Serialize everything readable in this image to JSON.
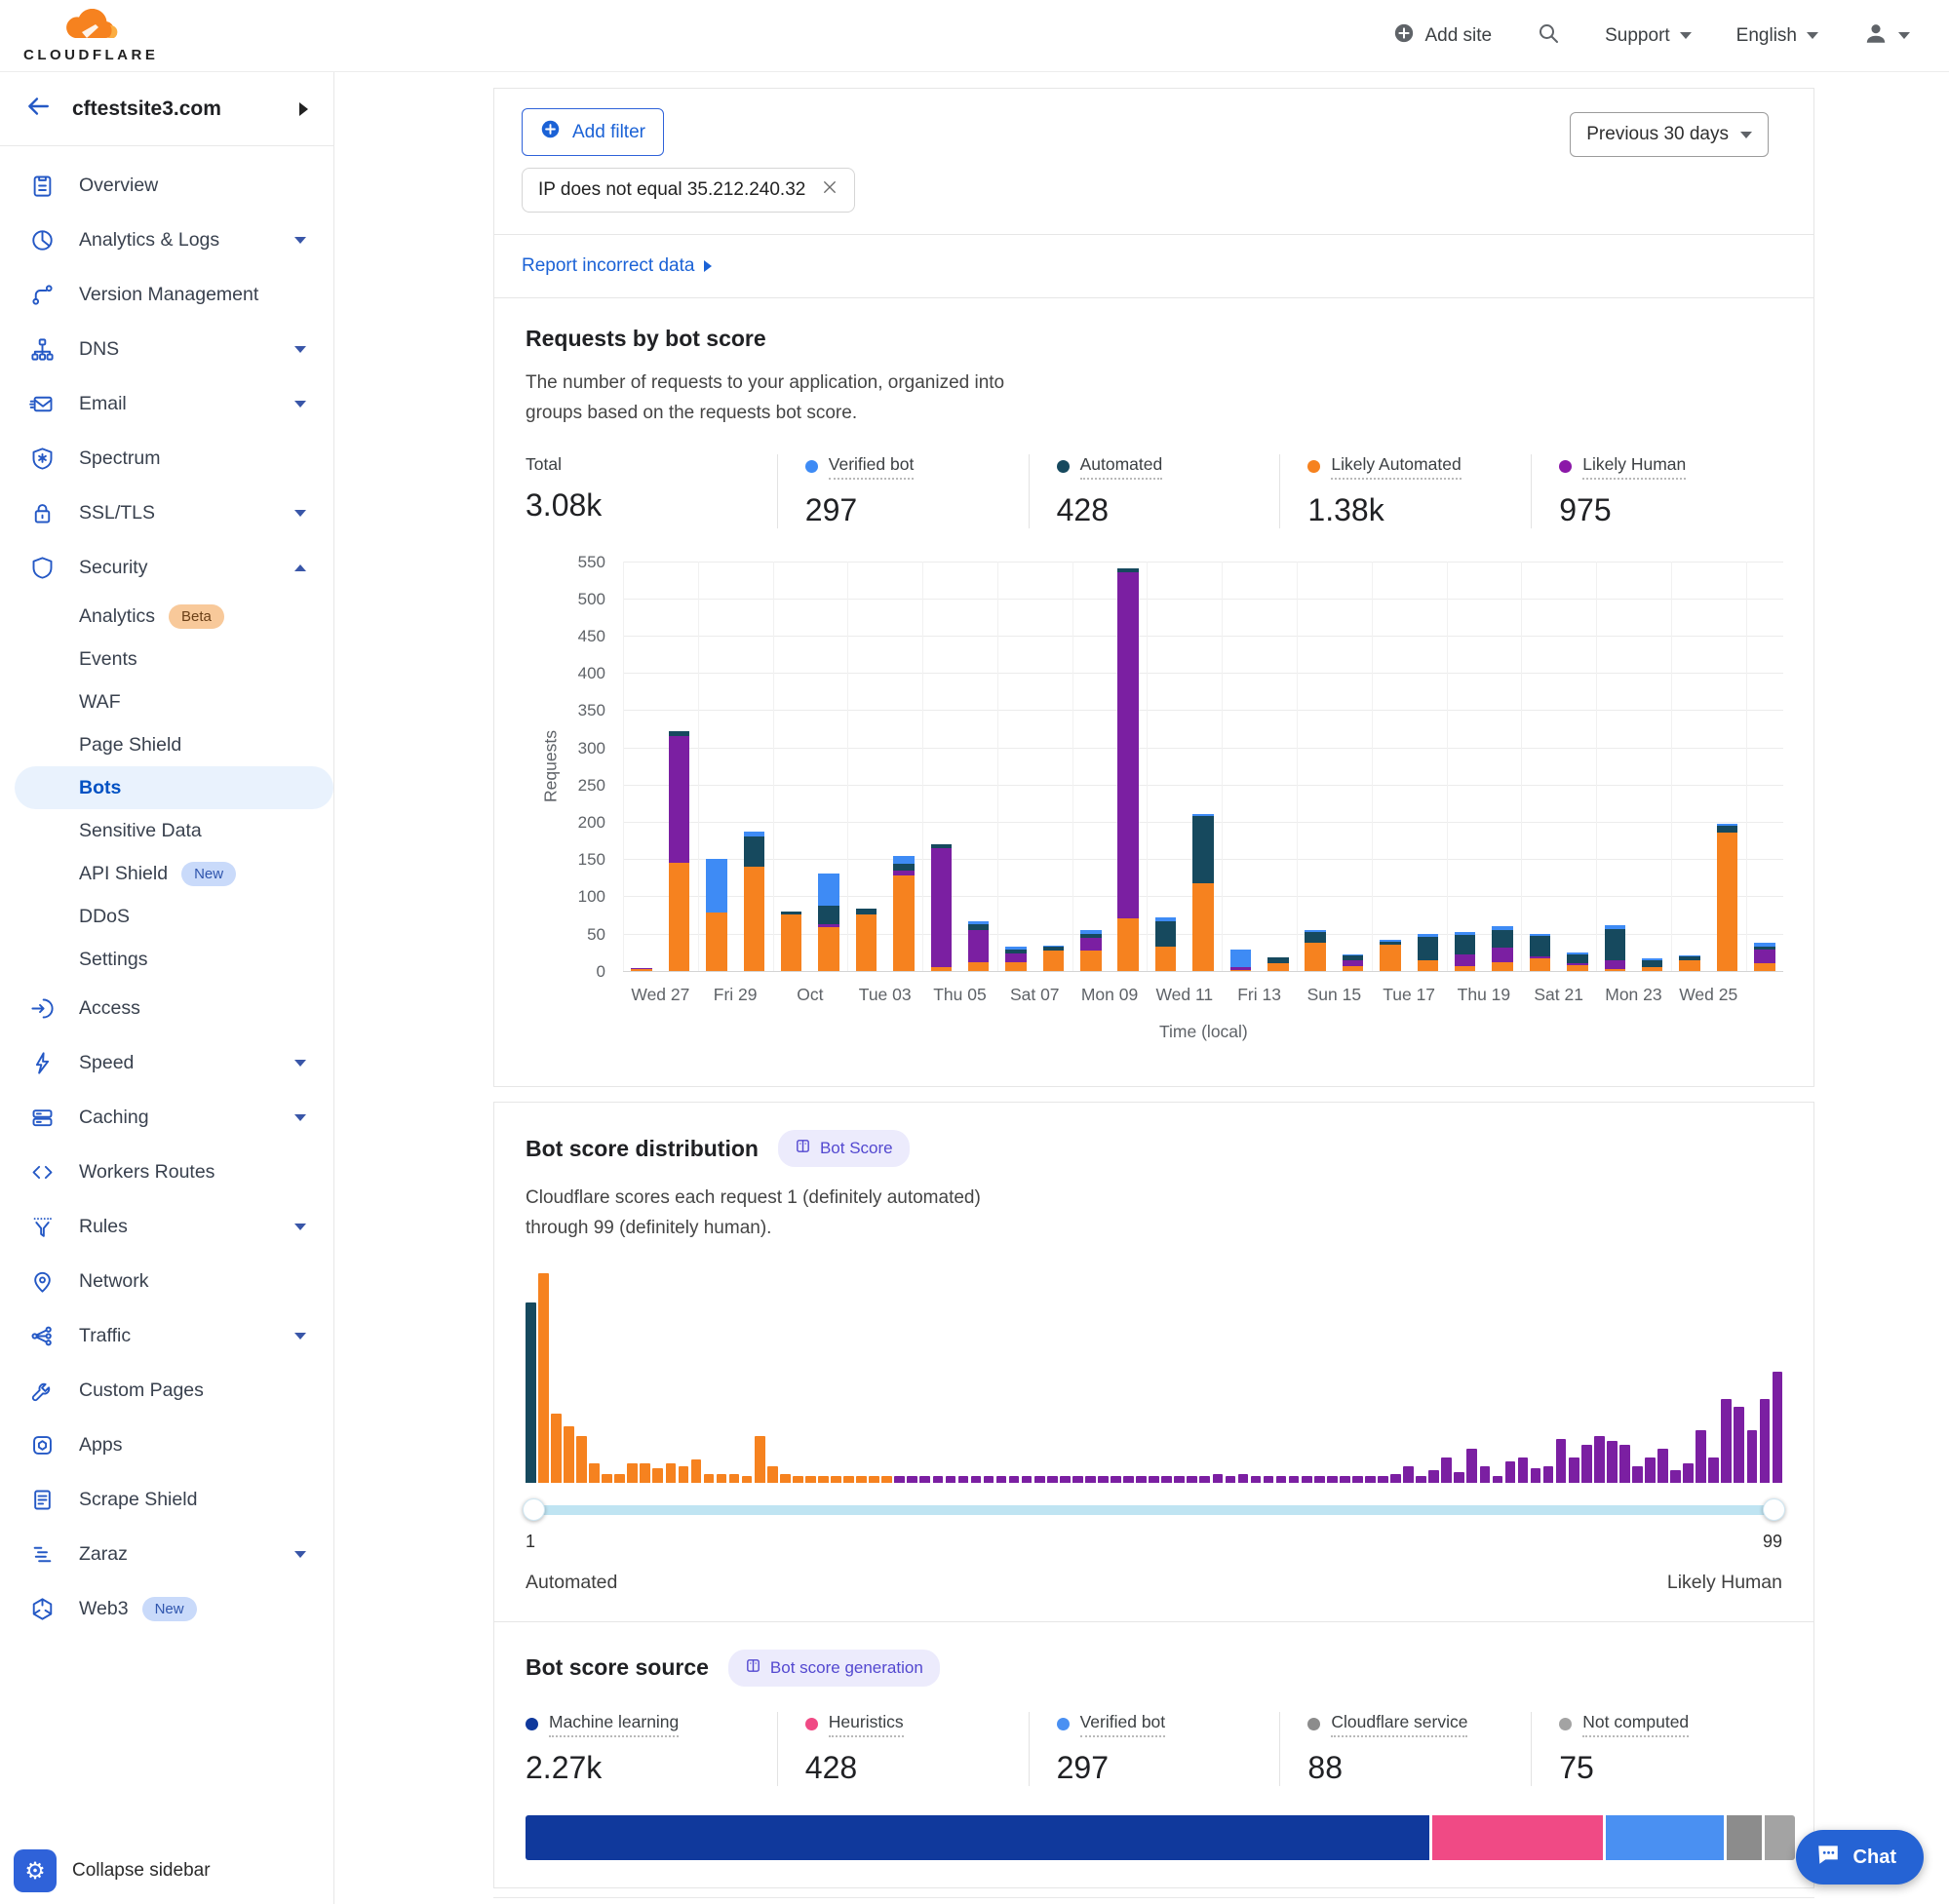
{
  "header": {
    "brand": "CLOUDFLARE",
    "add_site": "Add site",
    "support": "Support",
    "language": "English"
  },
  "sidebar": {
    "site": "cftestsite3.com",
    "collapse_label": "Collapse sidebar",
    "items": [
      {
        "name": "overview",
        "label": "Overview",
        "icon": "clipboard"
      },
      {
        "name": "analytics-logs",
        "label": "Analytics & Logs",
        "icon": "pie",
        "chevron": "down"
      },
      {
        "name": "version-management",
        "label": "Version Management",
        "icon": "branch"
      },
      {
        "name": "dns",
        "label": "DNS",
        "icon": "dns",
        "chevron": "down"
      },
      {
        "name": "email",
        "label": "Email",
        "icon": "email",
        "chevron": "down"
      },
      {
        "name": "spectrum",
        "label": "Spectrum",
        "icon": "spectrum"
      },
      {
        "name": "ssl-tls",
        "label": "SSL/TLS",
        "icon": "lock",
        "chevron": "down"
      },
      {
        "name": "security",
        "label": "Security",
        "icon": "shield",
        "chevron": "up"
      },
      {
        "name": "security-analytics",
        "label": "Analytics",
        "sub": true,
        "badge": {
          "text": "Beta",
          "type": "beta"
        }
      },
      {
        "name": "security-events",
        "label": "Events",
        "sub": true
      },
      {
        "name": "waf",
        "label": "WAF",
        "sub": true
      },
      {
        "name": "page-shield",
        "label": "Page Shield",
        "sub": true
      },
      {
        "name": "bots",
        "label": "Bots",
        "sub": true,
        "active": true
      },
      {
        "name": "sensitive-data",
        "label": "Sensitive Data",
        "sub": true
      },
      {
        "name": "api-shield",
        "label": "API Shield",
        "sub": true,
        "badge": {
          "text": "New",
          "type": "new"
        }
      },
      {
        "name": "ddos",
        "label": "DDoS",
        "sub": true
      },
      {
        "name": "security-settings",
        "label": "Settings",
        "sub": true
      },
      {
        "name": "access",
        "label": "Access",
        "icon": "access"
      },
      {
        "name": "speed",
        "label": "Speed",
        "icon": "bolt",
        "chevron": "down"
      },
      {
        "name": "caching",
        "label": "Caching",
        "icon": "server",
        "chevron": "down"
      },
      {
        "name": "workers-routes",
        "label": "Workers Routes",
        "icon": "code"
      },
      {
        "name": "rules",
        "label": "Rules",
        "icon": "funnel",
        "chevron": "down"
      },
      {
        "name": "network",
        "label": "Network",
        "icon": "pin"
      },
      {
        "name": "traffic",
        "label": "Traffic",
        "icon": "share",
        "chevron": "down"
      },
      {
        "name": "custom-pages",
        "label": "Custom Pages",
        "icon": "wrench"
      },
      {
        "name": "apps",
        "label": "Apps",
        "icon": "apps"
      },
      {
        "name": "scrape-shield",
        "label": "Scrape Shield",
        "icon": "document"
      },
      {
        "name": "zaraz",
        "label": "Zaraz",
        "icon": "zaraz",
        "chevron": "down"
      },
      {
        "name": "web3",
        "label": "Web3",
        "icon": "web3",
        "badge": {
          "text": "New",
          "type": "new"
        }
      }
    ]
  },
  "toolbar": {
    "add_filter": "Add filter",
    "filter_chip": "IP does not equal 35.212.240.32",
    "time_range": "Previous 30 days",
    "report_link": "Report incorrect data"
  },
  "requests_section": {
    "title": "Requests by bot score",
    "desc1": "The number of requests to your application, organized into",
    "desc2": "groups based on the requests bot score.",
    "stats": [
      {
        "label": "Total",
        "value": "3.08k",
        "color": null
      },
      {
        "label": "Verified bot",
        "value": "297",
        "color": "#3e8bf5"
      },
      {
        "label": "Automated",
        "value": "428",
        "color": "#16495e"
      },
      {
        "label": "Likely Automated",
        "value": "1.38k",
        "color": "#f6821f"
      },
      {
        "label": "Likely Human",
        "value": "975",
        "color": "#8b18a8"
      }
    ]
  },
  "distribution_section": {
    "title": "Bot score distribution",
    "badge": "Bot Score",
    "desc1": "Cloudflare scores each request 1 (definitely automated)",
    "desc2": "through 99 (definitely human).",
    "slider_min": "1",
    "slider_max": "99",
    "left_label": "Automated",
    "right_label": "Likely Human"
  },
  "source_section": {
    "title": "Bot score source",
    "badge": "Bot score generation",
    "stats": [
      {
        "label": "Machine learning",
        "value": "2.27k",
        "color": "#10399c"
      },
      {
        "label": "Heuristics",
        "value": "428",
        "color": "#f04a85"
      },
      {
        "label": "Verified bot",
        "value": "297",
        "color": "#4a90f2"
      },
      {
        "label": "Cloudflare service",
        "value": "88",
        "color": "#8c8c8c"
      },
      {
        "label": "Not computed",
        "value": "75",
        "color": "#a3a3a3"
      }
    ]
  },
  "chat_label": "Chat",
  "colors": {
    "likely_automated": "#f6821f",
    "likely_human": "#7b1fa2",
    "automated": "#16495e",
    "verified_bot": "#3e8bf5",
    "hist_teal": "#16495e",
    "hist_orange": "#f6821f",
    "hist_purple": "#7b1fa2",
    "accent_blue": "#0051c3"
  },
  "chart_data": [
    {
      "type": "bar",
      "stacked": true,
      "title": "Requests by bot score",
      "xlabel": "Time (local)",
      "ylabel": "Requests",
      "ylim": [
        0,
        550
      ],
      "ytick_step": 50,
      "grid": true,
      "categories": [
        "Wed 27",
        "Fri 29",
        "Oct",
        "Tue 03",
        "Thu 05",
        "Sat 07",
        "Mon 09",
        "Wed 11",
        "Fri 13",
        "Sun 15",
        "Tue 17",
        "Thu 19",
        "Sat 21",
        "Mon 23",
        "Wed 25"
      ],
      "series_order": [
        "likely_automated",
        "likely_human",
        "automated",
        "verified_bot"
      ],
      "legend": [
        {
          "name": "Verified bot",
          "total": 297
        },
        {
          "name": "Automated",
          "total": 428
        },
        {
          "name": "Likely Automated",
          "total": 1380
        },
        {
          "name": "Likely Human",
          "total": 975
        }
      ],
      "bars": [
        {
          "la": 2,
          "lh": 2,
          "a": 0,
          "vb": 0
        },
        {
          "la": 145,
          "lh": 170,
          "a": 7,
          "vb": 0
        },
        {
          "la": 78,
          "lh": 0,
          "a": 0,
          "vb": 72
        },
        {
          "la": 140,
          "lh": 0,
          "a": 40,
          "vb": 7
        },
        {
          "la": 75,
          "lh": 0,
          "a": 4,
          "vb": 0
        },
        {
          "la": 59,
          "lh": 4,
          "a": 24,
          "vb": 44
        },
        {
          "la": 76,
          "lh": 0,
          "a": 8,
          "vb": 0
        },
        {
          "la": 128,
          "lh": 6,
          "a": 10,
          "vb": 10
        },
        {
          "la": 5,
          "lh": 160,
          "a": 5,
          "vb": 0
        },
        {
          "la": 12,
          "lh": 42,
          "a": 8,
          "vb": 4
        },
        {
          "la": 11,
          "lh": 12,
          "a": 5,
          "vb": 4
        },
        {
          "la": 27,
          "lh": 0,
          "a": 5,
          "vb": 2
        },
        {
          "la": 27,
          "lh": 17,
          "a": 6,
          "vb": 4
        },
        {
          "la": 70,
          "lh": 465,
          "a": 5,
          "vb": 0
        },
        {
          "la": 33,
          "lh": 0,
          "a": 34,
          "vb": 5
        },
        {
          "la": 118,
          "lh": 0,
          "a": 90,
          "vb": 3
        },
        {
          "la": 1,
          "lh": 4,
          "a": 0,
          "vb": 24
        },
        {
          "la": 10,
          "lh": 0,
          "a": 8,
          "vb": 0
        },
        {
          "la": 38,
          "lh": 0,
          "a": 14,
          "vb": 2
        },
        {
          "la": 6,
          "lh": 8,
          "a": 6,
          "vb": 2
        },
        {
          "la": 35,
          "lh": 0,
          "a": 4,
          "vb": 2
        },
        {
          "la": 14,
          "lh": 0,
          "a": 32,
          "vb": 4
        },
        {
          "la": 6,
          "lh": 16,
          "a": 26,
          "vb": 4
        },
        {
          "la": 11,
          "lh": 20,
          "a": 24,
          "vb": 5
        },
        {
          "la": 16,
          "lh": 3,
          "a": 28,
          "vb": 3
        },
        {
          "la": 8,
          "lh": 2,
          "a": 12,
          "vb": 3
        },
        {
          "la": 2,
          "lh": 12,
          "a": 42,
          "vb": 5
        },
        {
          "la": 5,
          "lh": 0,
          "a": 9,
          "vb": 2
        },
        {
          "la": 14,
          "lh": 0,
          "a": 5,
          "vb": 1
        },
        {
          "la": 185,
          "lh": 0,
          "a": 10,
          "vb": 3
        },
        {
          "la": 10,
          "lh": 18,
          "a": 5,
          "vb": 4
        }
      ]
    },
    {
      "type": "bar",
      "title": "Bot score distribution",
      "x_range": [
        1,
        99
      ],
      "note": "relative heights 0-100; score 1 = teal, scores 2-30 = orange, 31-99 = purple",
      "values": [
        86,
        100,
        33,
        27,
        22,
        9,
        4,
        4,
        9,
        9,
        7,
        9,
        8,
        11,
        4,
        4,
        4,
        3,
        22,
        8,
        4,
        3,
        3,
        3,
        3,
        3,
        3,
        3,
        3,
        3,
        3,
        3,
        3,
        3,
        3,
        3,
        3,
        3,
        3,
        3,
        3,
        3,
        3,
        3,
        3,
        3,
        3,
        3,
        3,
        3,
        3,
        3,
        3,
        3,
        4,
        3,
        4,
        3,
        3,
        3,
        3,
        3,
        3,
        3,
        3,
        3,
        3,
        3,
        4,
        8,
        3,
        6,
        12,
        5,
        16,
        8,
        3,
        10,
        12,
        7,
        8,
        21,
        12,
        18,
        22,
        20,
        18,
        8,
        12,
        16,
        6,
        9,
        25,
        12,
        40,
        36,
        25,
        40,
        53
      ]
    },
    {
      "type": "bar",
      "title": "Bot score source share",
      "segments": [
        {
          "label": "Machine learning",
          "value": 2270,
          "pct": 71.9,
          "color": "#10399c"
        },
        {
          "label": "Heuristics",
          "value": 428,
          "pct": 13.6,
          "color": "#f04a85"
        },
        {
          "label": "Verified bot",
          "value": 297,
          "pct": 9.4,
          "color": "#4a90f2"
        },
        {
          "label": "Cloudflare service",
          "value": 88,
          "pct": 2.8,
          "color": "#8c8c8c"
        },
        {
          "label": "Not computed",
          "value": 75,
          "pct": 2.4,
          "color": "#a3a3a3"
        }
      ]
    }
  ]
}
